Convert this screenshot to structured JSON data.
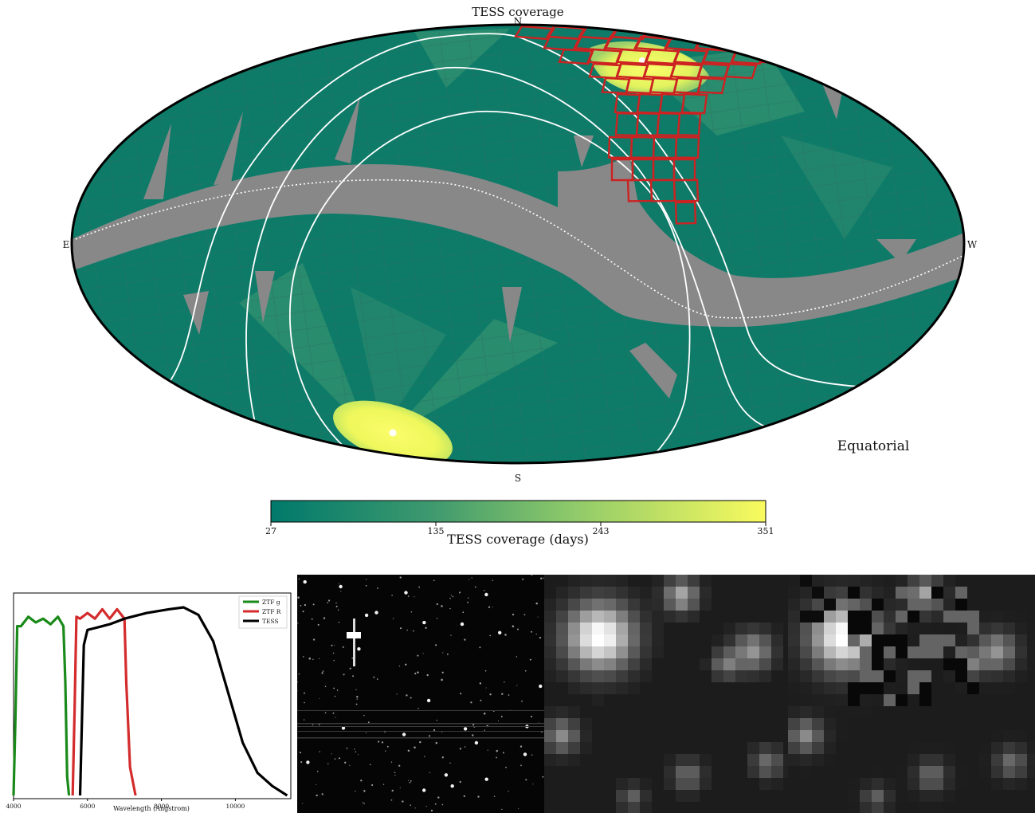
{
  "skymap": {
    "title": "TESS coverage",
    "label_north": "N",
    "label_south": "S",
    "label_east": "E",
    "label_west": "W",
    "frame_label": "Equatorial",
    "colors": {
      "low": "#00796b",
      "mid": "#8cc86a",
      "high": "#f5f95e",
      "gap": "#888888",
      "field_outline": "#cc2222"
    }
  },
  "colorbar": {
    "label": "TESS coverage (days)",
    "ticks": [
      "27",
      "135",
      "243",
      "351"
    ],
    "min": 27,
    "max": 351
  },
  "filters": {
    "legend": [
      {
        "name": "ZTF g",
        "color": "#1a8a1a"
      },
      {
        "name": "ZTF R",
        "color": "#d42c2c"
      },
      {
        "name": "TESS",
        "color": "#000000"
      }
    ],
    "xlabel": "Wavelength (Angstrom)",
    "xticks": [
      "4000",
      "6000",
      "8000",
      "10000"
    ]
  },
  "chart_data": [
    {
      "type": "heatmap",
      "title": "TESS coverage",
      "projection": "Mollweide",
      "frame": "Equatorial",
      "colorbar": {
        "label": "TESS coverage (days)",
        "range": [
          27,
          351
        ],
        "ticks": [
          27,
          135,
          243,
          351
        ]
      }
    },
    {
      "type": "line",
      "xlabel": "Wavelength (Angstrom)",
      "xlim": [
        4000,
        11500
      ],
      "legend_position": "top-right",
      "series": [
        {
          "name": "ZTF g",
          "x": [
            4000,
            4050,
            4100,
            4200,
            4400,
            4600,
            4800,
            5000,
            5200,
            5350,
            5400,
            5450,
            5500
          ],
          "y": [
            0.0,
            0.4,
            0.88,
            0.92,
            0.93,
            0.94,
            0.92,
            0.93,
            0.93,
            0.92,
            0.6,
            0.1,
            0.0
          ]
        },
        {
          "name": "ZTF R",
          "x": [
            5600,
            5650,
            5700,
            5800,
            6000,
            6200,
            6400,
            6600,
            6800,
            7000,
            7050,
            7150,
            7300
          ],
          "y": [
            0.0,
            0.45,
            0.93,
            0.96,
            0.95,
            0.96,
            0.97,
            0.96,
            0.97,
            0.96,
            0.6,
            0.15,
            0.0
          ]
        },
        {
          "name": "TESS",
          "x": [
            5800,
            5900,
            6000,
            6200,
            6600,
            7000,
            7600,
            8200,
            8600,
            9000,
            9400,
            9800,
            10200,
            10600,
            11000,
            11400
          ],
          "y": [
            0.0,
            0.8,
            0.88,
            0.89,
            0.91,
            0.94,
            0.97,
            0.99,
            1.0,
            0.96,
            0.82,
            0.55,
            0.28,
            0.12,
            0.05,
            0.0
          ]
        }
      ]
    }
  ]
}
